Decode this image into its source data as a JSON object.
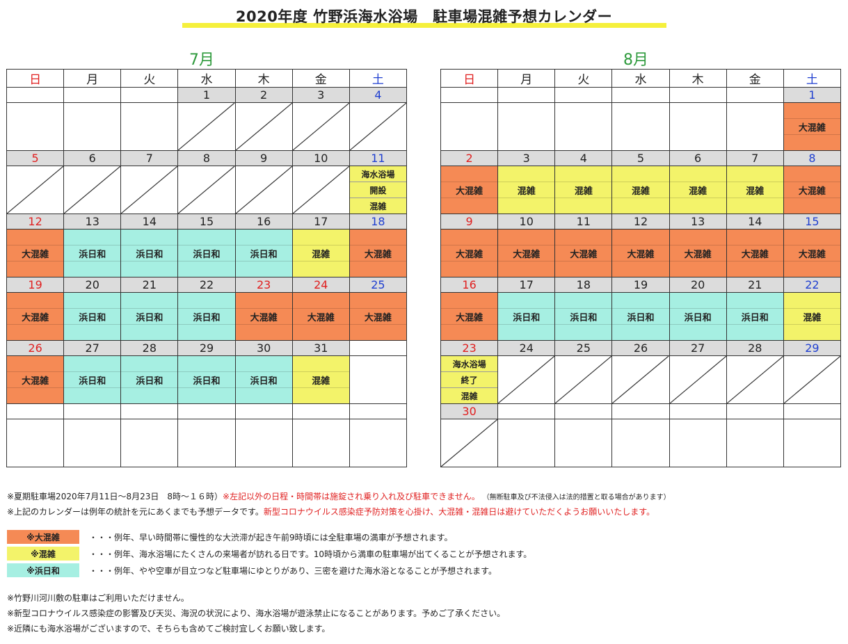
{
  "title": "2020年度 竹野浜海水浴場　駐車場混雑予想カレンダー",
  "weekdays": [
    "日",
    "月",
    "火",
    "水",
    "木",
    "金",
    "土"
  ],
  "months": [
    {
      "label": "7月",
      "weeks": [
        {
          "days": [
            "",
            "",
            "",
            "1",
            "2",
            "3",
            "4"
          ],
          "cells": [
            "",
            "",
            "",
            "/",
            "/",
            "/",
            "/"
          ]
        },
        {
          "days": [
            "5",
            "6",
            "7",
            "8",
            "9",
            "10",
            "11"
          ],
          "cells": [
            "/",
            "/",
            "/",
            "/",
            "/",
            "/",
            "open"
          ]
        },
        {
          "days": [
            "12",
            "13",
            "14",
            "15",
            "16",
            "17",
            "18"
          ],
          "cells": [
            "big",
            "calm",
            "calm",
            "calm",
            "calm",
            "mid",
            "big"
          ]
        },
        {
          "days": [
            "19",
            "20",
            "21",
            "22",
            "23",
            "24",
            "25"
          ],
          "cells": [
            "big",
            "calm",
            "calm",
            "calm",
            "big",
            "big",
            "big"
          ]
        },
        {
          "days": [
            "26",
            "27",
            "28",
            "29",
            "30",
            "31",
            ""
          ],
          "cells": [
            "big",
            "calm",
            "calm",
            "calm",
            "calm",
            "mid",
            ""
          ]
        },
        {
          "days": [
            "",
            "",
            "",
            "",
            "",
            "",
            ""
          ],
          "cells": [
            "",
            "",
            "",
            "",
            "",
            "",
            ""
          ]
        }
      ],
      "red_days": [
        "5",
        "12",
        "19",
        "23",
        "24",
        "26"
      ],
      "blue_days": [
        "4",
        "11",
        "18",
        "25"
      ]
    },
    {
      "label": "8月",
      "weeks": [
        {
          "days": [
            "",
            "",
            "",
            "",
            "",
            "",
            "1"
          ],
          "cells": [
            "",
            "",
            "",
            "",
            "",
            "",
            "big"
          ]
        },
        {
          "days": [
            "2",
            "3",
            "4",
            "5",
            "6",
            "7",
            "8"
          ],
          "cells": [
            "big",
            "mid",
            "mid",
            "mid",
            "mid",
            "mid",
            "big"
          ]
        },
        {
          "days": [
            "9",
            "10",
            "11",
            "12",
            "13",
            "14",
            "15"
          ],
          "cells": [
            "big",
            "big",
            "big",
            "big",
            "big",
            "big",
            "big"
          ]
        },
        {
          "days": [
            "16",
            "17",
            "18",
            "19",
            "20",
            "21",
            "22"
          ],
          "cells": [
            "big",
            "calm",
            "calm",
            "calm",
            "calm",
            "calm",
            "mid"
          ]
        },
        {
          "days": [
            "23",
            "24",
            "25",
            "26",
            "27",
            "28",
            "29"
          ],
          "cells": [
            "close",
            "/",
            "/",
            "/",
            "/",
            "/",
            "/"
          ]
        },
        {
          "days": [
            "30",
            "",
            "",
            "",
            "",
            "",
            ""
          ],
          "cells": [
            "/",
            "",
            "",
            "",
            "",
            "",
            ""
          ]
        }
      ],
      "red_days": [
        "2",
        "9",
        "16",
        "23",
        "30"
      ],
      "blue_days": [
        "1",
        "8",
        "15",
        "22",
        "29"
      ]
    }
  ],
  "labels": {
    "big": "大混雑",
    "mid": "混雑",
    "calm": "浜日和",
    "open": [
      "海水浴場",
      "開設",
      "混雑"
    ],
    "close": [
      "海水浴場",
      "終了",
      "混雑"
    ]
  },
  "colors": {
    "big": "#f58a55",
    "mid": "#f3f36a",
    "calm": "#a6efe2",
    "sunday": "#e02020",
    "saturday": "#1f3fd0",
    "month": "#2e9a3c",
    "title_bar": "#f5f03c"
  },
  "notes": {
    "line1_black": "※夏期駐車場2020年7月11日〜8月23日　8時〜１６時）",
    "line1_red": "※左記以外の日程・時間帯は施錠され乗り入れ及び駐車できません。",
    "line1_small": "（無断駐車及び不法侵入は法的措置と取る場合があります）",
    "line2_black": "※上記のカレンダーは例年の統計を元にあくまでも予想データです。",
    "line2_red": "新型コロナウイルス感染症予防対策を心掛け、大混雑・混雑日は避けていただくようお願いいたします。"
  },
  "legend": [
    {
      "key": "big",
      "label": "※大混雑",
      "text": "・・・例年、早い時間帯に慢性的な大渋滞が起き午前9時頃には全駐車場の満車が予想されます。"
    },
    {
      "key": "mid",
      "label": "※混雑",
      "text": "・・・例年、海水浴場にたくさんの来場者が訪れる日です。10時頃から満車の駐車場が出てくることが予想されます。"
    },
    {
      "key": "calm",
      "label": "※浜日和",
      "text": "・・・例年、やや空車が目立つなど駐車場にゆとりがあり、三密を避けた海水浴となることが予想されます。"
    }
  ],
  "footer": [
    "※竹野川河川敷の駐車はご利用いただけません。",
    "※新型コロナウイルス感染症の影響及び天災、海況の状況により、海水浴場が遊泳禁止になることがあります。予めご了承ください。",
    "※近隣にも海水浴場がございますので、そちらも含めてご検討宜しくお願い致します。"
  ]
}
